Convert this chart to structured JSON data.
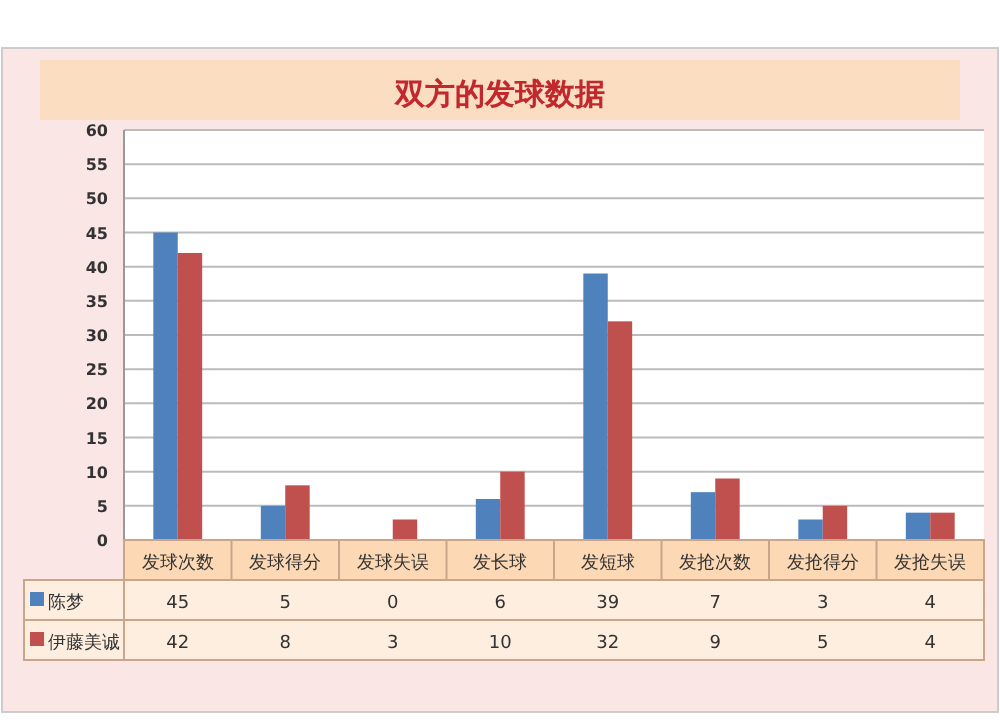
{
  "chart_data": {
    "type": "bar",
    "title": "双方的发球数据",
    "categories": [
      "发球次数",
      "发球得分",
      "发球失误",
      "发长球",
      "发短球",
      "发抢次数",
      "发抢得分",
      "发抢失误"
    ],
    "series": [
      {
        "name": "陈梦",
        "color": "#4f81bd",
        "values": [
          45,
          5,
          0,
          6,
          39,
          7,
          3,
          4
        ]
      },
      {
        "name": "伊藤美诚",
        "color": "#c0504d",
        "values": [
          42,
          8,
          3,
          10,
          32,
          9,
          5,
          4
        ]
      }
    ],
    "ylim": [
      0,
      60
    ],
    "yticks": [
      0,
      5,
      10,
      15,
      20,
      25,
      30,
      35,
      40,
      45,
      50,
      55,
      60
    ],
    "grid": "y",
    "legend": "bottom",
    "data_labels": true
  }
}
